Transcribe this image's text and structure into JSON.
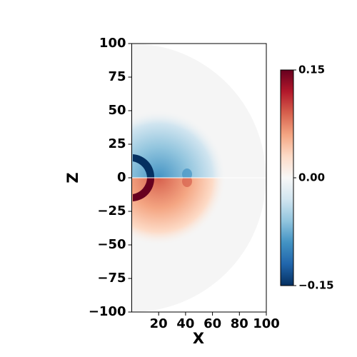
{
  "chart_data": {
    "type": "heatmap",
    "xlabel": "X",
    "ylabel": "Z",
    "xlim": [
      0,
      100
    ],
    "xticks": [
      20,
      40,
      60,
      80,
      100
    ],
    "ylim": [
      -100,
      100
    ],
    "yticks": [
      {
        "value": -100,
        "label": "−100"
      },
      {
        "value": -75,
        "label": "−75"
      },
      {
        "value": -50,
        "label": "−50"
      },
      {
        "value": -25,
        "label": "−25"
      },
      0,
      25,
      50,
      75,
      100
    ],
    "colorbar": {
      "colormap": "RdBu_r",
      "lim": [
        -0.15,
        0.15
      ],
      "ticks": [
        {
          "value": -0.15,
          "label": "−0.15"
        },
        {
          "value": 0,
          "label": "0.00"
        },
        0.15
      ]
    }
  }
}
